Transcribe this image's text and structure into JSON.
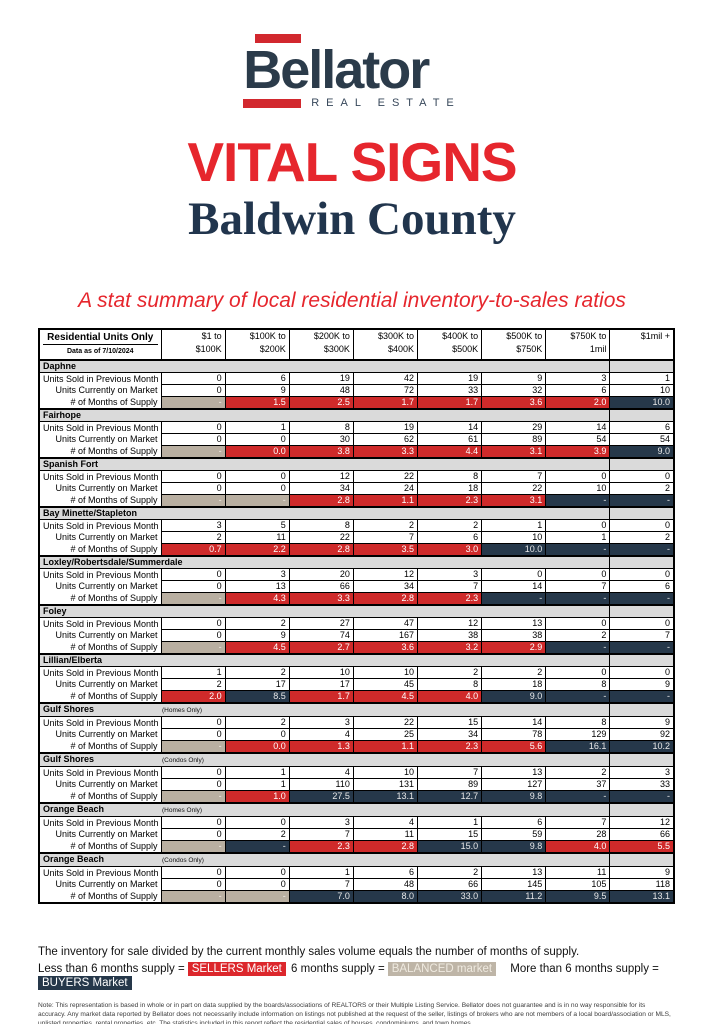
{
  "logo": {
    "brand": "Bellator",
    "tagline": "REAL ESTATE"
  },
  "title": "VITAL SIGNS",
  "county": "Baldwin County",
  "tagline": "A stat summary of local residential inventory-to-sales ratios",
  "colors": {
    "red": "#CF2A2A",
    "navy": "#26384A",
    "tan": "#B9AFA1",
    "section_gray": "#DADADA",
    "headline_red": "#E6262D",
    "brand_navy": "#2B3B4A"
  },
  "table": {
    "corner_title": "Residential Units Only",
    "corner_subtitle": "Data as of 7/10/2024",
    "columns": [
      {
        "line1": "$1 to",
        "line2": "$100K"
      },
      {
        "line1": "$100K to",
        "line2": "$200K"
      },
      {
        "line1": "$200K to",
        "line2": "$300K"
      },
      {
        "line1": "$300K to",
        "line2": "$400K"
      },
      {
        "line1": "$400K to",
        "line2": "$500K"
      },
      {
        "line1": "$500K to",
        "line2": "$750K"
      },
      {
        "line1": "$750K to",
        "line2": "1mil"
      },
      {
        "line1": "$1mil +",
        "line2": ""
      }
    ],
    "row_labels": {
      "sold": "Units Sold in Previous Month",
      "market": "Units Currently on Market",
      "supply": "# of Months of Supply"
    },
    "sections": [
      {
        "name": "Daphne",
        "qualifier": "",
        "sold": [
          "0",
          "6",
          "19",
          "42",
          "19",
          "9",
          "3",
          "1"
        ],
        "market": [
          "0",
          "9",
          "48",
          "72",
          "33",
          "32",
          "6",
          "10"
        ],
        "supply": [
          {
            "v": "-",
            "t": "tan"
          },
          {
            "v": "1.5",
            "t": "red"
          },
          {
            "v": "2.5",
            "t": "red"
          },
          {
            "v": "1.7",
            "t": "red"
          },
          {
            "v": "1.7",
            "t": "red"
          },
          {
            "v": "3.6",
            "t": "red"
          },
          {
            "v": "2.0",
            "t": "red"
          },
          {
            "v": "10.0",
            "t": "navy"
          }
        ]
      },
      {
        "name": "Fairhope",
        "qualifier": "",
        "sold": [
          "0",
          "1",
          "8",
          "19",
          "14",
          "29",
          "14",
          "6"
        ],
        "market": [
          "0",
          "0",
          "30",
          "62",
          "61",
          "89",
          "54",
          "54"
        ],
        "supply": [
          {
            "v": "-",
            "t": "tan"
          },
          {
            "v": "0.0",
            "t": "red"
          },
          {
            "v": "3.8",
            "t": "red"
          },
          {
            "v": "3.3",
            "t": "red"
          },
          {
            "v": "4.4",
            "t": "red"
          },
          {
            "v": "3.1",
            "t": "red"
          },
          {
            "v": "3.9",
            "t": "red"
          },
          {
            "v": "9.0",
            "t": "navy"
          }
        ]
      },
      {
        "name": "Spanish Fort",
        "qualifier": "",
        "sold": [
          "0",
          "0",
          "12",
          "22",
          "8",
          "7",
          "0",
          "0"
        ],
        "market": [
          "0",
          "0",
          "34",
          "24",
          "18",
          "22",
          "10",
          "2"
        ],
        "supply": [
          {
            "v": "-",
            "t": "tan"
          },
          {
            "v": "-",
            "t": "tan"
          },
          {
            "v": "2.8",
            "t": "red"
          },
          {
            "v": "1.1",
            "t": "red"
          },
          {
            "v": "2.3",
            "t": "red"
          },
          {
            "v": "3.1",
            "t": "red"
          },
          {
            "v": "-",
            "t": "navy"
          },
          {
            "v": "-",
            "t": "navy"
          }
        ]
      },
      {
        "name": "Bay Minette/Stapleton",
        "qualifier": "",
        "sold": [
          "3",
          "5",
          "8",
          "2",
          "2",
          "1",
          "0",
          "0"
        ],
        "market": [
          "2",
          "11",
          "22",
          "7",
          "6",
          "10",
          "1",
          "2"
        ],
        "supply": [
          {
            "v": "0.7",
            "t": "red"
          },
          {
            "v": "2.2",
            "t": "red"
          },
          {
            "v": "2.8",
            "t": "red"
          },
          {
            "v": "3.5",
            "t": "red"
          },
          {
            "v": "3.0",
            "t": "red"
          },
          {
            "v": "10.0",
            "t": "navy"
          },
          {
            "v": "-",
            "t": "navy"
          },
          {
            "v": "-",
            "t": "navy"
          }
        ]
      },
      {
        "name": "Loxley/Robertsdale/Summerdale",
        "qualifier": "",
        "sold": [
          "0",
          "3",
          "20",
          "12",
          "3",
          "0",
          "0",
          "0"
        ],
        "market": [
          "0",
          "13",
          "66",
          "34",
          "7",
          "14",
          "7",
          "6"
        ],
        "supply": [
          {
            "v": "-",
            "t": "tan"
          },
          {
            "v": "4.3",
            "t": "red"
          },
          {
            "v": "3.3",
            "t": "red"
          },
          {
            "v": "2.8",
            "t": "red"
          },
          {
            "v": "2.3",
            "t": "red"
          },
          {
            "v": "-",
            "t": "navy"
          },
          {
            "v": "-",
            "t": "navy"
          },
          {
            "v": "-",
            "t": "navy"
          }
        ]
      },
      {
        "name": "Foley",
        "qualifier": "",
        "sold": [
          "0",
          "2",
          "27",
          "47",
          "12",
          "13",
          "0",
          "0"
        ],
        "market": [
          "0",
          "9",
          "74",
          "167",
          "38",
          "38",
          "2",
          "7"
        ],
        "supply": [
          {
            "v": "-",
            "t": "tan"
          },
          {
            "v": "4.5",
            "t": "red"
          },
          {
            "v": "2.7",
            "t": "red"
          },
          {
            "v": "3.6",
            "t": "red"
          },
          {
            "v": "3.2",
            "t": "red"
          },
          {
            "v": "2.9",
            "t": "red"
          },
          {
            "v": "-",
            "t": "navy"
          },
          {
            "v": "-",
            "t": "navy"
          }
        ]
      },
      {
        "name": "Lillian/Elberta",
        "qualifier": "",
        "sold": [
          "1",
          "2",
          "10",
          "10",
          "2",
          "2",
          "0",
          "0"
        ],
        "market": [
          "2",
          "17",
          "17",
          "45",
          "8",
          "18",
          "8",
          "9"
        ],
        "supply": [
          {
            "v": "2.0",
            "t": "red"
          },
          {
            "v": "8.5",
            "t": "navy"
          },
          {
            "v": "1.7",
            "t": "red"
          },
          {
            "v": "4.5",
            "t": "red"
          },
          {
            "v": "4.0",
            "t": "red"
          },
          {
            "v": "9.0",
            "t": "navy"
          },
          {
            "v": "-",
            "t": "navy"
          },
          {
            "v": "-",
            "t": "navy"
          }
        ]
      },
      {
        "name": "Gulf Shores",
        "qualifier": "(Homes Only)",
        "sold": [
          "0",
          "2",
          "3",
          "22",
          "15",
          "14",
          "8",
          "9"
        ],
        "market": [
          "0",
          "0",
          "4",
          "25",
          "34",
          "78",
          "129",
          "92"
        ],
        "supply": [
          {
            "v": "-",
            "t": "tan"
          },
          {
            "v": "0.0",
            "t": "red"
          },
          {
            "v": "1.3",
            "t": "red"
          },
          {
            "v": "1.1",
            "t": "red"
          },
          {
            "v": "2.3",
            "t": "red"
          },
          {
            "v": "5.6",
            "t": "red"
          },
          {
            "v": "16.1",
            "t": "navy"
          },
          {
            "v": "10.2",
            "t": "navy"
          }
        ]
      },
      {
        "name": "Gulf Shores",
        "qualifier": "(Condos Only)",
        "sold": [
          "0",
          "1",
          "4",
          "10",
          "7",
          "13",
          "2",
          "3"
        ],
        "market": [
          "0",
          "1",
          "110",
          "131",
          "89",
          "127",
          "37",
          "33"
        ],
        "supply": [
          {
            "v": "-",
            "t": "tan"
          },
          {
            "v": "1.0",
            "t": "red"
          },
          {
            "v": "27.5",
            "t": "navy"
          },
          {
            "v": "13.1",
            "t": "navy"
          },
          {
            "v": "12.7",
            "t": "navy"
          },
          {
            "v": "9.8",
            "t": "navy"
          },
          {
            "v": "-",
            "t": "navy"
          },
          {
            "v": "-",
            "t": "navy"
          }
        ]
      },
      {
        "name": "Orange Beach",
        "qualifier": "(Homes Only)",
        "sold": [
          "0",
          "0",
          "3",
          "4",
          "1",
          "6",
          "7",
          "12"
        ],
        "market": [
          "0",
          "2",
          "7",
          "11",
          "15",
          "59",
          "28",
          "66"
        ],
        "supply": [
          {
            "v": "-",
            "t": "tan"
          },
          {
            "v": "-",
            "t": "navy"
          },
          {
            "v": "2.3",
            "t": "red"
          },
          {
            "v": "2.8",
            "t": "red"
          },
          {
            "v": "15.0",
            "t": "navy"
          },
          {
            "v": "9.8",
            "t": "navy"
          },
          {
            "v": "4.0",
            "t": "red"
          },
          {
            "v": "5.5",
            "t": "red"
          }
        ]
      },
      {
        "name": "Orange Beach",
        "qualifier": "(Condos Only)",
        "sold": [
          "0",
          "0",
          "1",
          "6",
          "2",
          "13",
          "11",
          "9"
        ],
        "market": [
          "0",
          "0",
          "7",
          "48",
          "66",
          "145",
          "105",
          "118"
        ],
        "supply": [
          {
            "v": "-",
            "t": "tan"
          },
          {
            "v": "-",
            "t": "tan"
          },
          {
            "v": "7.0",
            "t": "navy"
          },
          {
            "v": "8.0",
            "t": "navy"
          },
          {
            "v": "33.0",
            "t": "navy"
          },
          {
            "v": "11.2",
            "t": "navy"
          },
          {
            "v": "9.5",
            "t": "navy"
          },
          {
            "v": "13.1",
            "t": "navy"
          }
        ]
      }
    ]
  },
  "footer": {
    "line1": "The inventory for sale divided by the current monthly sales volume equals the number of months of supply.",
    "legend": {
      "pre1": "Less than 6 months supply =",
      "chip1": "SELLERS Market",
      "pre2": "6 months supply =",
      "chip2": "BALANCED market",
      "pre3": "More than 6 months supply =",
      "chip3": "BUYERS Market"
    },
    "note": "Note: This representation is based in whole or in part on data supplied by the boards/associations of REALTORS or their Multiple Listing Service. Bellator does not guarantee and is in no way responsible for its accuracy. Any market data reported by Bellator does not necessarily include information on listings not published at the request of the seller, listings of brokers who are not members of a local board/association or MLS, unlisted properties, rental properties, etc. The statistics included in this report reflect the residential sales of houses, condominiums, and town homes."
  }
}
